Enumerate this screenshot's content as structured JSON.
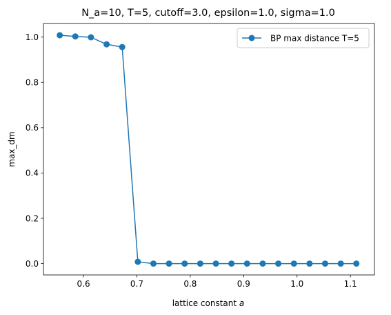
{
  "chart_data": {
    "type": "line",
    "title": "N_a=10, T=5, cutoff=3.0, epsilon=1.0, sigma=1.0",
    "xlabel": "lattice constant ",
    "xlabel_italic": "a",
    "ylabel": "max_dm",
    "xlim": [
      0.525,
      1.145
    ],
    "ylim": [
      -0.05,
      1.06
    ],
    "xticks": [
      0.6,
      0.7,
      0.8,
      0.9,
      1.0,
      1.1
    ],
    "xtick_labels": [
      "0.6",
      "0.7",
      "0.8",
      "0.9",
      "1.0",
      "1.1"
    ],
    "yticks": [
      0.0,
      0.2,
      0.4,
      0.6,
      0.8,
      1.0
    ],
    "ytick_labels": [
      "0.0",
      "0.2",
      "0.4",
      "0.6",
      "0.8",
      "1.0"
    ],
    "grid": false,
    "legend_position": "top-right",
    "series": [
      {
        "name": "BP max distance T=5",
        "color": "#1f77b4",
        "marker": "circle",
        "x": [
          0.5556,
          0.5847,
          0.614,
          0.6433,
          0.6725,
          0.7018,
          0.731,
          0.7602,
          0.7895,
          0.8187,
          0.848,
          0.8772,
          0.9064,
          0.9357,
          0.9649,
          0.9942,
          1.0234,
          1.0526,
          1.0819,
          1.1111
        ],
        "y": [
          1.008,
          1.003,
          0.999,
          0.968,
          0.956,
          0.008,
          0.0,
          0.0,
          0.0,
          0.0,
          0.0,
          0.0,
          0.0,
          0.0,
          0.0,
          0.0,
          0.0,
          0.0,
          0.0,
          0.0
        ]
      }
    ]
  }
}
